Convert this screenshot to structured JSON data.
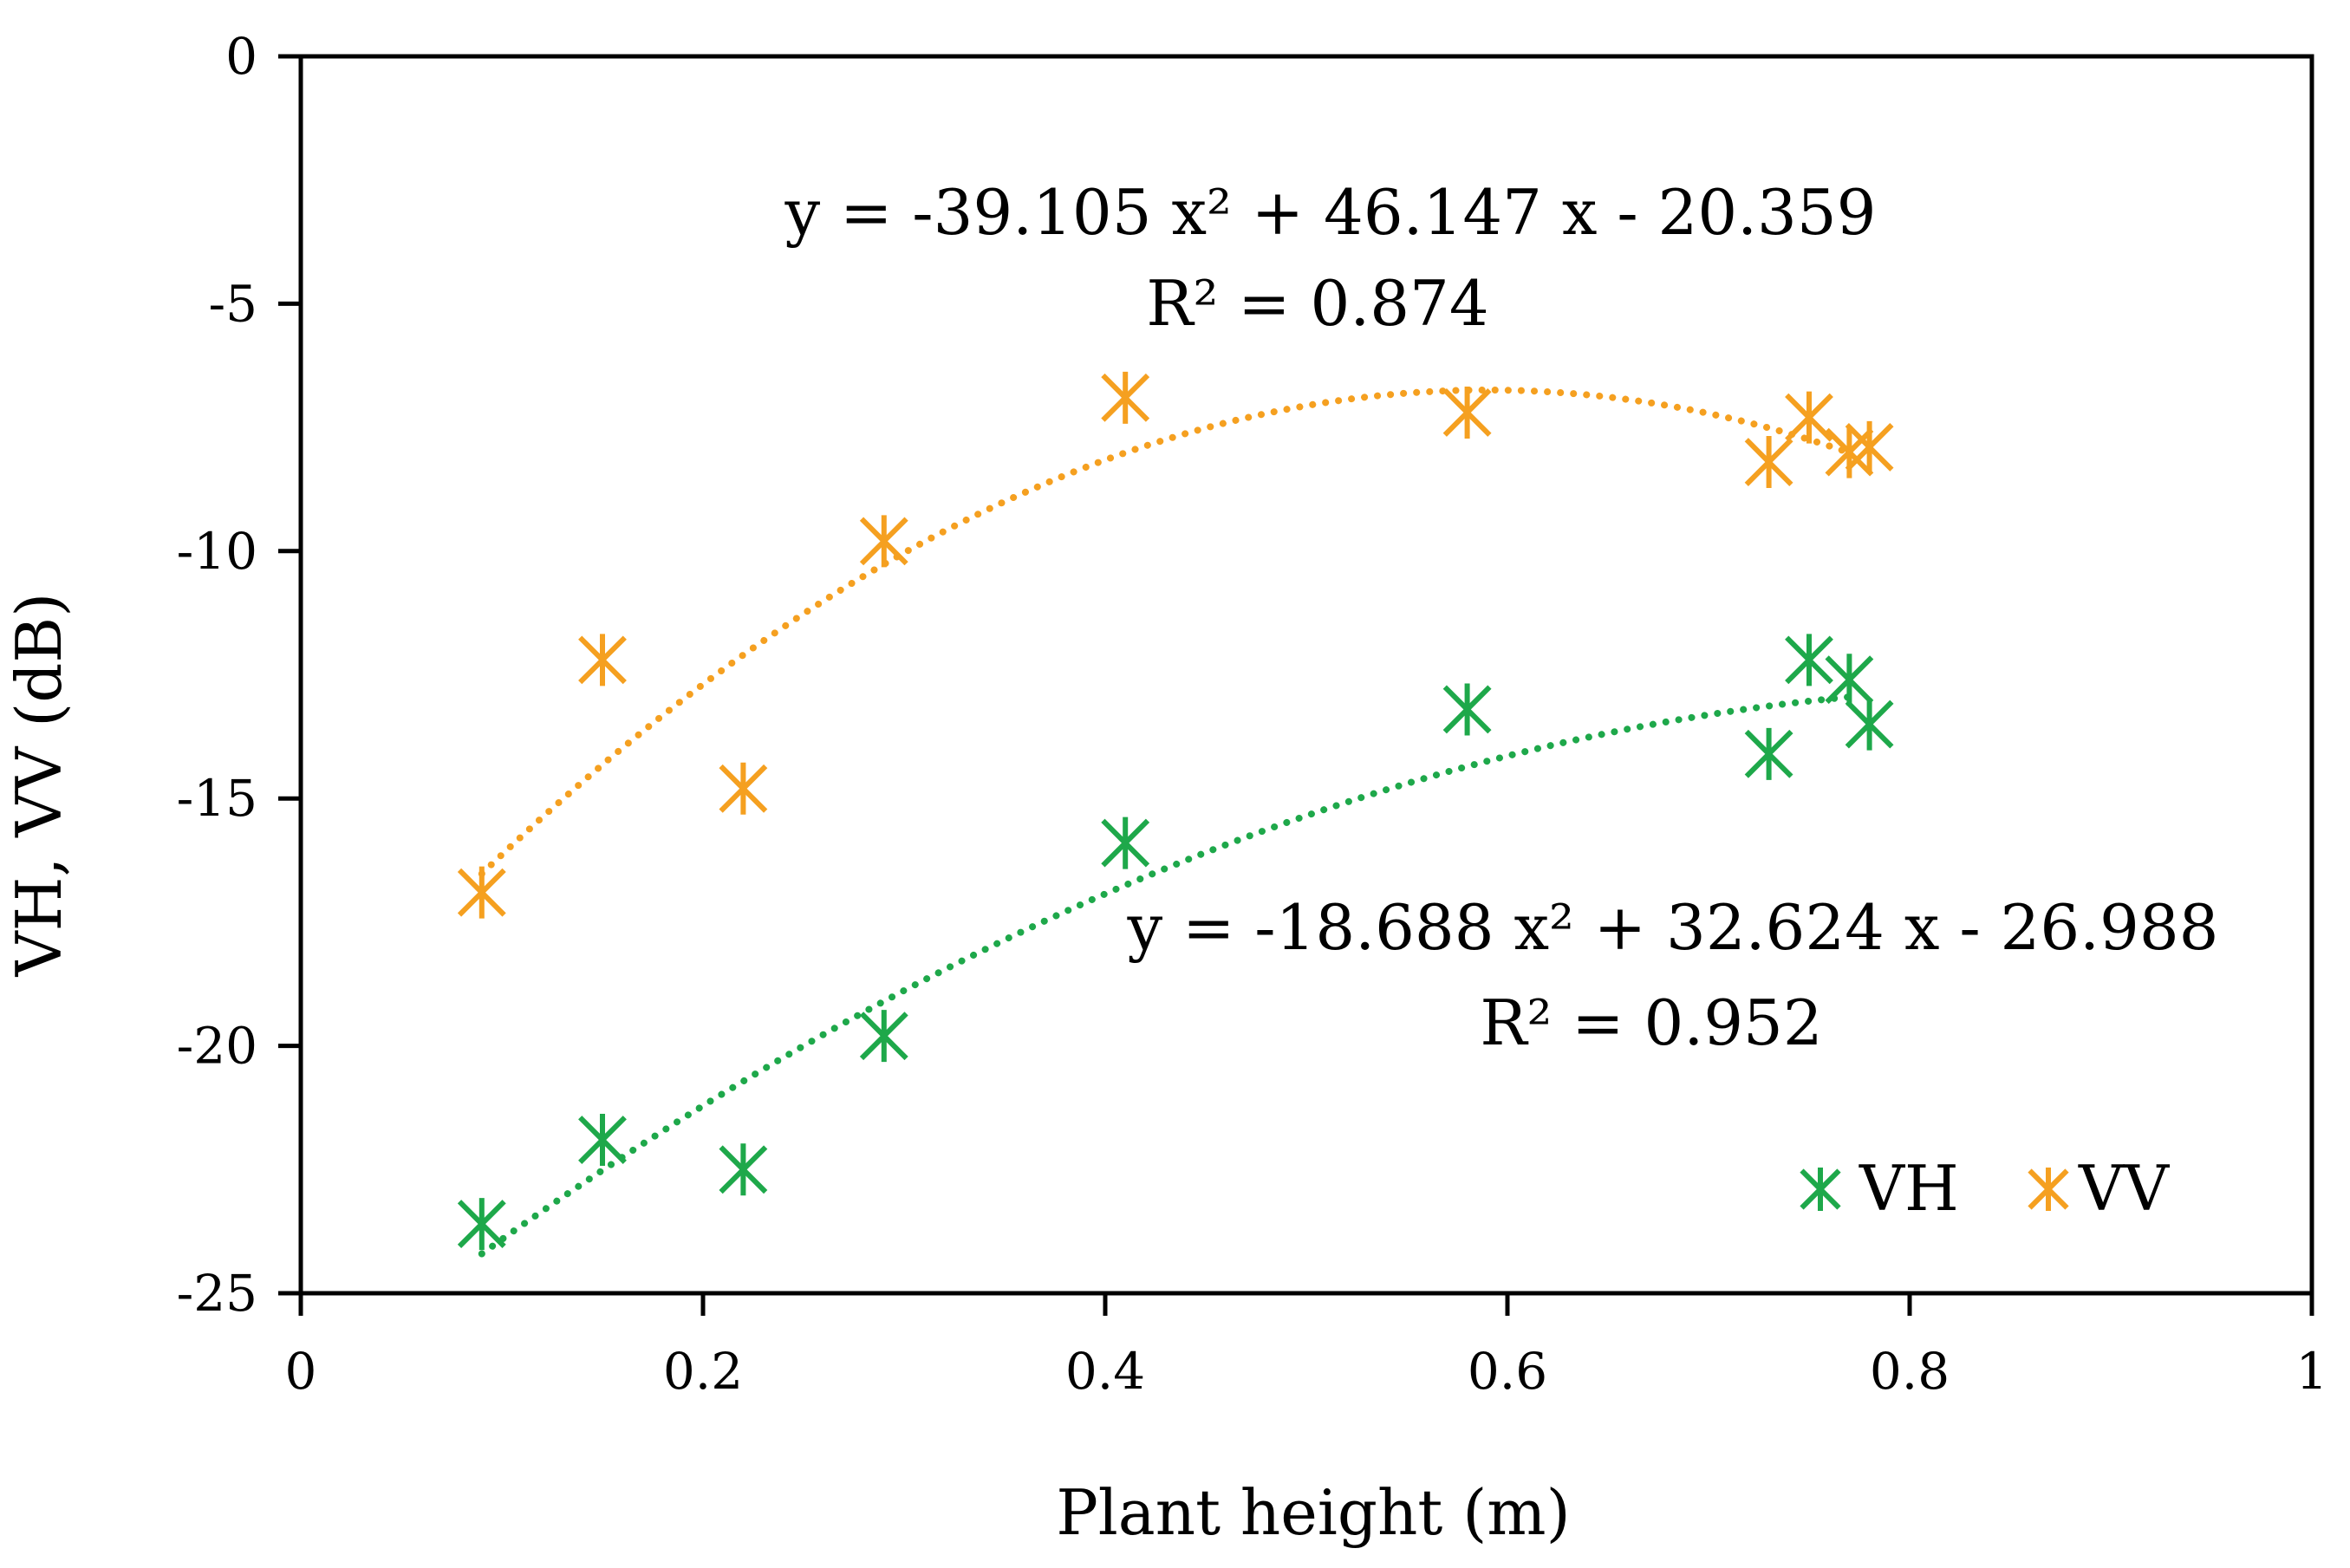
{
  "chart_data": {
    "type": "scatter",
    "title": "",
    "xlabel": "Plant height (m)",
    "ylabel": "VH, VV (dB)",
    "xlim": [
      0,
      1
    ],
    "ylim": [
      -25,
      0
    ],
    "xticks": [
      0,
      0.2,
      0.4,
      0.6,
      0.8,
      1
    ],
    "yticks": [
      0,
      -5,
      -10,
      -15,
      -20,
      -25
    ],
    "xtick_labels": [
      "0",
      "0.2",
      "0.4",
      "0.6",
      "0.8",
      "1"
    ],
    "ytick_labels": [
      "0",
      "-5",
      "-10",
      "-15",
      "-20",
      "-25"
    ],
    "legend_position": "bottom-right",
    "series": [
      {
        "name": "VH",
        "color": "#1ea84a",
        "marker": "star",
        "x": [
          0.09,
          0.15,
          0.22,
          0.29,
          0.41,
          0.58,
          0.73,
          0.75,
          0.77,
          0.78
        ],
        "y": [
          -23.6,
          -21.9,
          -22.5,
          -19.8,
          -15.9,
          -13.2,
          -14.1,
          -12.2,
          -12.6,
          -13.5
        ],
        "trendline": {
          "type": "polynomial",
          "a": -18.688,
          "b": 32.624,
          "c": -26.988,
          "x_range": [
            0.09,
            0.77
          ],
          "style": "dotted",
          "equation_text": "y = -18.688 x² + 32.624 x - 26.988",
          "r2_text": "R² = 0.952"
        }
      },
      {
        "name": "VV",
        "color": "#f5a020",
        "marker": "star",
        "x": [
          0.09,
          0.15,
          0.22,
          0.29,
          0.41,
          0.58,
          0.73,
          0.75,
          0.77,
          0.78
        ],
        "y": [
          -16.9,
          -12.2,
          -14.8,
          -9.8,
          -6.9,
          -7.2,
          -8.2,
          -7.3,
          -8.0,
          -7.9
        ],
        "trendline": {
          "type": "polynomial",
          "a": -39.105,
          "b": 46.147,
          "c": -20.359,
          "x_range": [
            0.09,
            0.77
          ],
          "style": "dotted",
          "equation_text": "y = -39.105 x² + 46.147 x - 20.359",
          "r2_text": "R² = 0.874"
        }
      }
    ]
  }
}
